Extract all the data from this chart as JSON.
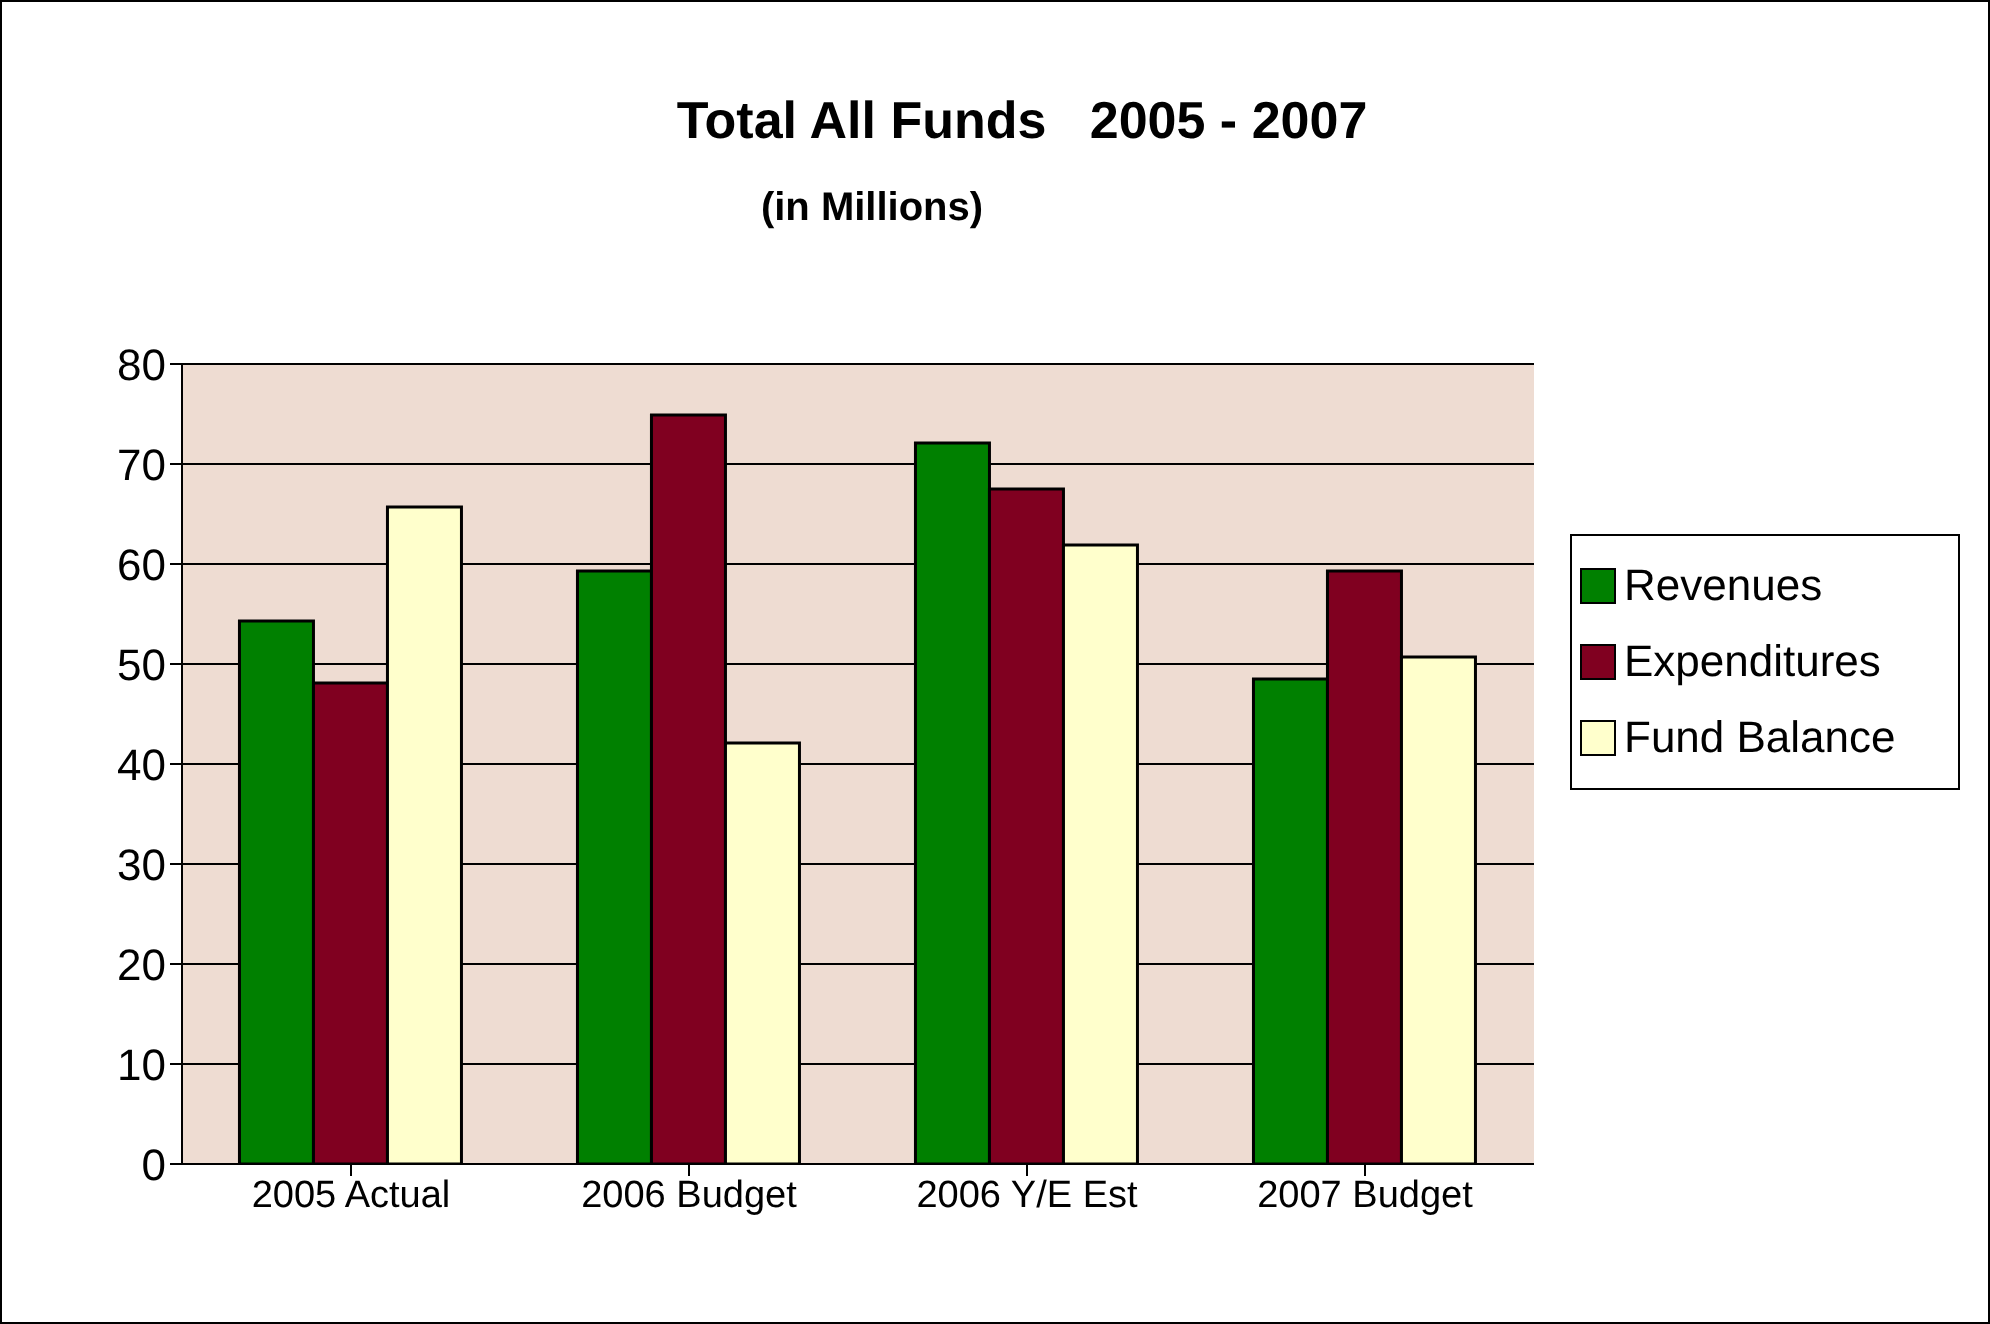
{
  "chart_data": {
    "type": "bar",
    "title": "Total All Funds   2005 - 2007",
    "subtitle": "(in Millions)",
    "categories": [
      "2005 Actual",
      "2006 Budget",
      "2006 Y/E Est",
      "2007 Budget"
    ],
    "series": [
      {
        "name": "Revenues",
        "color": "#008000",
        "values": [
          54.3,
          59.3,
          72.1,
          48.5
        ]
      },
      {
        "name": "Expenditures",
        "color": "#800020",
        "values": [
          48.1,
          74.9,
          67.5,
          59.3
        ]
      },
      {
        "name": "Fund Balance",
        "color": "#ffffcc",
        "values": [
          65.7,
          42.1,
          61.9,
          50.7
        ]
      }
    ],
    "ylim": [
      0,
      80
    ],
    "yticks": [
      0,
      10,
      20,
      30,
      40,
      50,
      60,
      70,
      80
    ],
    "grid": "y",
    "legend": "right"
  }
}
